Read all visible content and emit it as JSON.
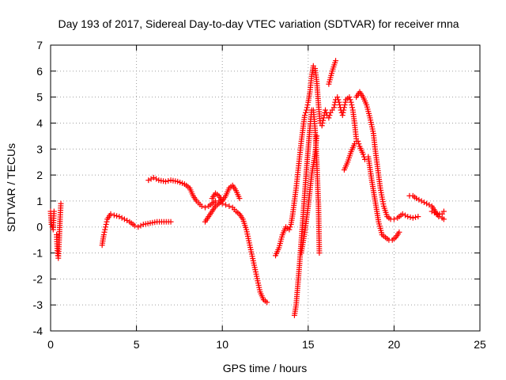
{
  "chart_data": {
    "type": "scatter",
    "title": "Day 193 of 2017, Sidereal Day-to-day VTEC variation (SDTVAR) for receiver rnna",
    "xlabel": "GPS time / hours",
    "ylabel": "SDTVAR / TECUs",
    "xlim": [
      0,
      25
    ],
    "ylim": [
      -4,
      7
    ],
    "xticks": [
      0,
      5,
      10,
      15,
      20,
      25
    ],
    "yticks": [
      -4,
      -3,
      -2,
      -1,
      0,
      1,
      2,
      3,
      4,
      5,
      6,
      7
    ],
    "grid": true,
    "legend": "none",
    "marker": "+",
    "colors": {
      "series": "#ff0000",
      "grid": "#a0a0a0",
      "axis": "#000000"
    },
    "series": [
      {
        "name": "SDTVAR",
        "segments": [
          [
            [
              0.0,
              0.6
            ],
            [
              0.05,
              0.1
            ],
            [
              0.1,
              0.0
            ],
            [
              0.15,
              -0.1
            ],
            [
              0.2,
              0.6
            ]
          ],
          [
            [
              0.35,
              -0.3
            ],
            [
              0.4,
              -1.0
            ],
            [
              0.45,
              -1.2
            ],
            [
              0.5,
              -0.5
            ],
            [
              0.55,
              0.3
            ],
            [
              0.6,
              0.9
            ]
          ],
          [
            [
              3.0,
              -0.7
            ],
            [
              3.1,
              -0.3
            ],
            [
              3.2,
              0.0
            ],
            [
              3.3,
              0.3
            ],
            [
              3.5,
              0.5
            ],
            [
              3.7,
              0.45
            ],
            [
              4.0,
              0.4
            ],
            [
              4.3,
              0.3
            ],
            [
              4.6,
              0.2
            ],
            [
              4.9,
              0.05
            ],
            [
              5.1,
              0.0
            ],
            [
              5.4,
              0.1
            ],
            [
              5.8,
              0.15
            ],
            [
              6.2,
              0.2
            ],
            [
              6.6,
              0.2
            ],
            [
              7.0,
              0.2
            ]
          ],
          [
            [
              5.7,
              1.8
            ],
            [
              6.0,
              1.9
            ],
            [
              6.3,
              1.8
            ],
            [
              6.7,
              1.75
            ],
            [
              7.0,
              1.8
            ],
            [
              7.4,
              1.75
            ],
            [
              7.8,
              1.65
            ],
            [
              8.1,
              1.5
            ],
            [
              8.3,
              1.2
            ],
            [
              8.5,
              1.0
            ],
            [
              8.8,
              0.8
            ],
            [
              9.0,
              0.75
            ],
            [
              9.2,
              0.8
            ],
            [
              9.4,
              0.9
            ],
            [
              9.6,
              1.0
            ],
            [
              9.8,
              1.0
            ],
            [
              10.0,
              0.9
            ],
            [
              10.2,
              0.85
            ],
            [
              10.4,
              0.8
            ],
            [
              10.6,
              0.75
            ],
            [
              10.8,
              0.6
            ],
            [
              11.0,
              0.5
            ],
            [
              11.2,
              0.3
            ],
            [
              11.4,
              -0.1
            ],
            [
              11.6,
              -0.7
            ],
            [
              11.8,
              -1.3
            ],
            [
              12.0,
              -1.9
            ],
            [
              12.2,
              -2.5
            ],
            [
              12.4,
              -2.8
            ],
            [
              12.6,
              -2.9
            ]
          ],
          [
            [
              9.0,
              0.2
            ],
            [
              9.2,
              0.4
            ],
            [
              9.4,
              0.6
            ],
            [
              9.6,
              0.8
            ],
            [
              9.8,
              0.9
            ],
            [
              10.0,
              1.0
            ],
            [
              10.2,
              1.2
            ],
            [
              10.4,
              1.5
            ],
            [
              10.6,
              1.6
            ],
            [
              10.8,
              1.4
            ],
            [
              11.0,
              1.1
            ]
          ],
          [
            [
              9.4,
              1.1
            ],
            [
              9.6,
              1.3
            ],
            [
              9.8,
              1.2
            ],
            [
              10.0,
              1.0
            ]
          ],
          [
            [
              13.1,
              -1.1
            ],
            [
              13.3,
              -0.8
            ],
            [
              13.5,
              -0.3
            ],
            [
              13.7,
              0.0
            ],
            [
              13.9,
              -0.1
            ],
            [
              14.0,
              0.1
            ],
            [
              14.1,
              0.5
            ],
            [
              14.2,
              1.0
            ],
            [
              14.3,
              1.5
            ],
            [
              14.4,
              2.1
            ],
            [
              14.5,
              2.7
            ],
            [
              14.6,
              3.3
            ],
            [
              14.7,
              3.8
            ],
            [
              14.8,
              4.3
            ],
            [
              14.9,
              4.5
            ],
            [
              15.0,
              4.8
            ],
            [
              15.1,
              5.2
            ],
            [
              15.2,
              5.8
            ],
            [
              15.3,
              6.2
            ],
            [
              15.4,
              6.1
            ],
            [
              15.5,
              5.6
            ],
            [
              15.6,
              4.7
            ],
            [
              15.7,
              4.0
            ],
            [
              15.8,
              3.9
            ],
            [
              15.9,
              4.2
            ],
            [
              16.0,
              4.5
            ],
            [
              16.1,
              4.3
            ],
            [
              16.2,
              4.2
            ],
            [
              16.3,
              4.4
            ],
            [
              16.4,
              4.5
            ],
            [
              16.5,
              4.6
            ],
            [
              16.6,
              4.9
            ],
            [
              16.7,
              5.0
            ],
            [
              16.8,
              4.8
            ],
            [
              16.9,
              4.5
            ],
            [
              17.0,
              4.3
            ],
            [
              17.1,
              4.6
            ],
            [
              17.2,
              4.9
            ],
            [
              17.4,
              5.0
            ],
            [
              17.5,
              4.8
            ],
            [
              17.6,
              4.5
            ],
            [
              17.7,
              4.0
            ],
            [
              17.8,
              3.4
            ]
          ],
          [
            [
              14.2,
              -3.4
            ],
            [
              14.3,
              -3.0
            ],
            [
              14.4,
              -2.2
            ],
            [
              14.5,
              -1.4
            ],
            [
              14.6,
              -0.5
            ],
            [
              14.7,
              0.4
            ],
            [
              14.8,
              1.3
            ],
            [
              14.9,
              2.2
            ],
            [
              15.0,
              3.0
            ],
            [
              15.1,
              3.8
            ],
            [
              15.2,
              4.5
            ],
            [
              15.3,
              4.5
            ],
            [
              15.4,
              3.8
            ],
            [
              15.5,
              2.5
            ],
            [
              15.6,
              0.8
            ],
            [
              15.65,
              -1.0
            ]
          ],
          [
            [
              14.6,
              -1.0
            ],
            [
              14.8,
              -0.2
            ],
            [
              15.0,
              0.8
            ],
            [
              15.2,
              2.0
            ],
            [
              15.4,
              2.8
            ],
            [
              15.5,
              3.5
            ]
          ],
          [
            [
              16.2,
              5.5
            ],
            [
              16.4,
              6.0
            ],
            [
              16.6,
              6.4
            ]
          ],
          [
            [
              17.1,
              2.2
            ],
            [
              17.3,
              2.5
            ],
            [
              17.5,
              2.9
            ],
            [
              17.7,
              3.2
            ],
            [
              17.8,
              3.3
            ],
            [
              17.9,
              3.3
            ],
            [
              18.0,
              3.1
            ],
            [
              18.2,
              2.8
            ],
            [
              18.3,
              2.6
            ]
          ],
          [
            [
              17.8,
              5.0
            ],
            [
              18.0,
              5.2
            ],
            [
              18.2,
              5.0
            ],
            [
              18.4,
              4.7
            ],
            [
              18.6,
              4.2
            ],
            [
              18.8,
              3.6
            ],
            [
              18.9,
              3.0
            ],
            [
              19.0,
              2.5
            ],
            [
              19.2,
              1.5
            ],
            [
              19.4,
              0.8
            ],
            [
              19.6,
              0.4
            ],
            [
              19.8,
              0.3
            ],
            [
              20.0,
              0.3
            ],
            [
              20.2,
              0.35
            ],
            [
              20.5,
              0.5
            ],
            [
              20.8,
              0.4
            ],
            [
              21.1,
              0.35
            ],
            [
              21.4,
              0.4
            ]
          ],
          [
            [
              18.5,
              2.7
            ],
            [
              18.7,
              1.8
            ],
            [
              18.9,
              1.0
            ],
            [
              19.1,
              0.2
            ],
            [
              19.3,
              -0.3
            ],
            [
              19.5,
              -0.4
            ],
            [
              19.7,
              -0.5
            ],
            [
              19.9,
              -0.5
            ],
            [
              20.1,
              -0.4
            ],
            [
              20.3,
              -0.2
            ]
          ],
          [
            [
              20.9,
              1.2
            ],
            [
              21.1,
              1.2
            ],
            [
              21.3,
              1.1
            ],
            [
              21.6,
              1.0
            ],
            [
              21.9,
              0.9
            ],
            [
              22.2,
              0.8
            ],
            [
              22.4,
              0.6
            ],
            [
              22.6,
              0.4
            ],
            [
              22.8,
              0.35
            ],
            [
              22.9,
              0.3
            ]
          ],
          [
            [
              22.2,
              0.6
            ],
            [
              22.5,
              0.5
            ],
            [
              22.8,
              0.5
            ],
            [
              22.9,
              0.6
            ]
          ]
        ]
      }
    ]
  }
}
